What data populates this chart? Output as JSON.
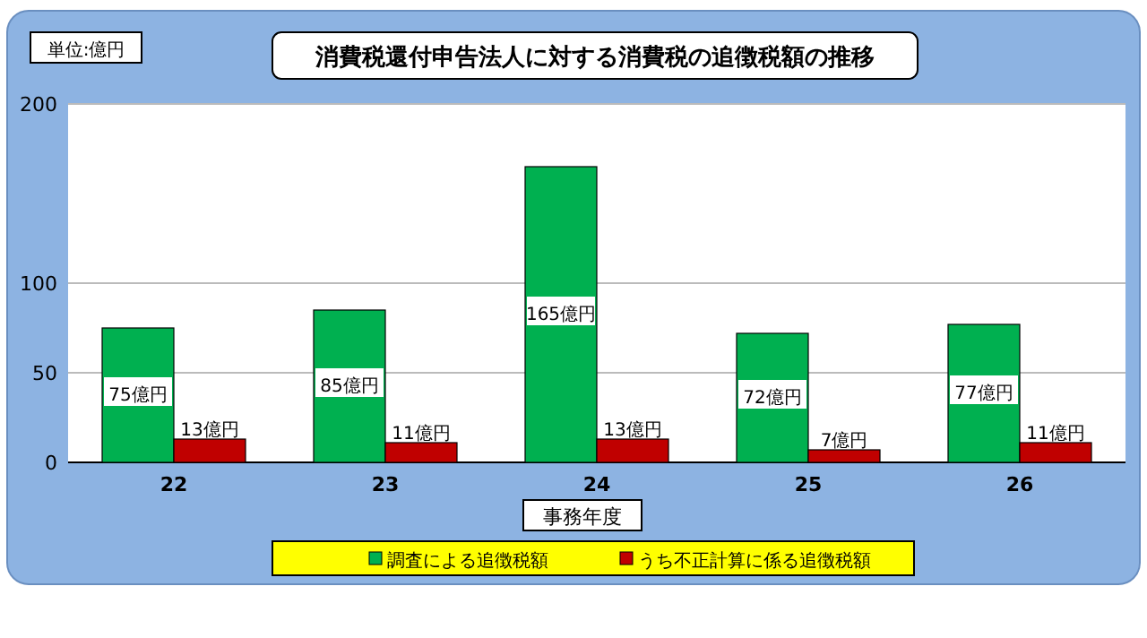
{
  "chart_data": {
    "type": "bar",
    "title": "消費税還付申告法人に対する消費税の追徴税額の推移",
    "xlabel": "事務年度",
    "annotations": [
      "単位:億円"
    ],
    "categories": [
      "22",
      "23",
      "24",
      "25",
      "26"
    ],
    "series": [
      {
        "name": "調査による追徴税額",
        "color": "#00b050",
        "values": [
          75,
          85,
          165,
          72,
          77
        ],
        "value_labels": [
          "75億円",
          "85億円",
          "165億円",
          "72億円",
          "77億円"
        ]
      },
      {
        "name": "うち不正計算に係る追徴税額",
        "color": "#c00000",
        "values": [
          13,
          11,
          13,
          7,
          11
        ],
        "value_labels": [
          "13億円",
          "11億円",
          "13億円",
          "7億円",
          "11億円"
        ]
      }
    ],
    "ylim": [
      0,
      200
    ],
    "yticks": [
      0,
      50,
      100,
      200
    ],
    "grid": "y",
    "legend": "bottom"
  }
}
